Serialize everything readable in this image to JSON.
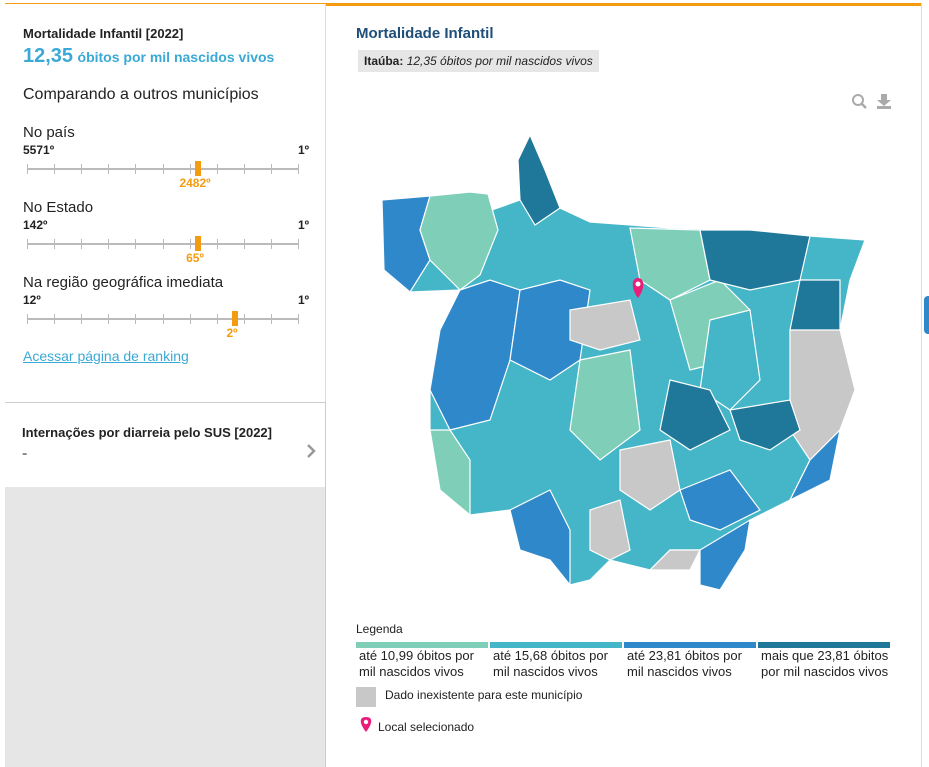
{
  "indicator": {
    "title": "Mortalidade Infantil [2022]",
    "value": "12,35",
    "unit": "óbitos por mil nascidos vivos"
  },
  "comparison": {
    "heading": "Comparando a outros municípios",
    "rankings": [
      {
        "label": "No país",
        "worst": "5571º",
        "best": "1º",
        "position": "2482º"
      },
      {
        "label": "No Estado",
        "worst": "142º",
        "best": "1º",
        "position": "65º"
      },
      {
        "label": "Na região geográfica imediata",
        "worst": "12º",
        "best": "1º",
        "position": "2º"
      }
    ],
    "link": "Acessar página de ranking"
  },
  "next_indicator": {
    "title": "Internações por diarreia pelo SUS [2022]",
    "value": "-"
  },
  "map": {
    "title": "Mortalidade Infantil",
    "selected": {
      "name": "Itaúba:",
      "value": "12,35 óbitos por mil nascidos vivos"
    },
    "legend": {
      "title": "Legenda",
      "items": [
        {
          "label": "até 10,99 óbitos por mil nascidos vivos",
          "color": "#7fcfb8"
        },
        {
          "label": "até 15,68 óbitos por mil nascidos vivos",
          "color": "#44b6c8"
        },
        {
          "label": "até 23,81 óbitos por mil nascidos vivos",
          "color": "#2f88c9"
        },
        {
          "label": "mais que 23,81 óbitos por mil nascidos vivos",
          "color": "#1f7899"
        }
      ],
      "missing": "Dado inexistente para este município",
      "missing_color": "#c8c8c8",
      "selected_place": "Local selecionado"
    }
  }
}
